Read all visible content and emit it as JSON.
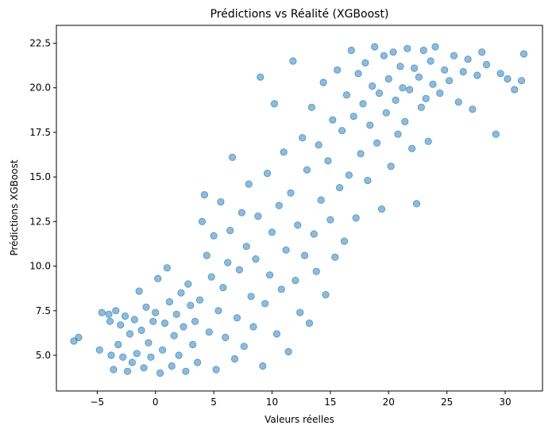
{
  "chart_data": {
    "type": "scatter",
    "title": "Prédictions vs Réalité (XGBoost)",
    "xlabel": "Valeurs réelles",
    "ylabel": "Prédictions XGBoost",
    "xlim": [
      -8.5,
      33.2
    ],
    "ylim": [
      3.0,
      23.5
    ],
    "xticks": [
      -5,
      0,
      5,
      10,
      15,
      20,
      25,
      30
    ],
    "yticks": [
      5.0,
      7.5,
      10.0,
      12.5,
      15.0,
      17.5,
      20.0,
      22.5
    ],
    "xtick_labels": [
      "−5",
      "0",
      "5",
      "10",
      "15",
      "20",
      "25",
      "30"
    ],
    "ytick_labels": [
      "5.0",
      "7.5",
      "10.0",
      "12.5",
      "15.0",
      "17.5",
      "20.0",
      "22.5"
    ],
    "grid": false,
    "marker_color": "#1f77b4",
    "marker_alpha": 0.5,
    "series": [
      {
        "values_note": "",
        "points": [
          [
            -7.0,
            5.8
          ],
          [
            -6.6,
            6.0
          ],
          [
            -4.8,
            5.3
          ],
          [
            -4.6,
            7.4
          ],
          [
            -4.0,
            7.3
          ],
          [
            -3.9,
            6.9
          ],
          [
            -3.8,
            5.0
          ],
          [
            -3.6,
            4.2
          ],
          [
            -3.4,
            7.5
          ],
          [
            -3.2,
            5.6
          ],
          [
            -3.0,
            6.7
          ],
          [
            -2.8,
            4.9
          ],
          [
            -2.6,
            7.2
          ],
          [
            -2.4,
            4.1
          ],
          [
            -2.2,
            6.2
          ],
          [
            -2.0,
            4.6
          ],
          [
            -1.8,
            7.0
          ],
          [
            -1.6,
            5.1
          ],
          [
            -1.4,
            8.6
          ],
          [
            -1.2,
            6.4
          ],
          [
            -1.0,
            4.3
          ],
          [
            -0.8,
            7.7
          ],
          [
            -0.6,
            5.7
          ],
          [
            -0.4,
            4.9
          ],
          [
            -0.2,
            6.9
          ],
          [
            0.0,
            7.4
          ],
          [
            0.2,
            9.3
          ],
          [
            0.4,
            4.0
          ],
          [
            0.6,
            5.3
          ],
          [
            0.8,
            6.8
          ],
          [
            1.0,
            9.9
          ],
          [
            1.2,
            8.0
          ],
          [
            1.4,
            4.4
          ],
          [
            1.6,
            6.1
          ],
          [
            1.8,
            7.3
          ],
          [
            2.0,
            5.0
          ],
          [
            2.2,
            8.5
          ],
          [
            2.4,
            6.6
          ],
          [
            2.6,
            4.1
          ],
          [
            2.8,
            9.0
          ],
          [
            3.0,
            7.8
          ],
          [
            3.2,
            5.6
          ],
          [
            3.4,
            6.9
          ],
          [
            3.6,
            4.6
          ],
          [
            3.8,
            8.1
          ],
          [
            4.0,
            12.5
          ],
          [
            4.2,
            14.0
          ],
          [
            4.4,
            10.6
          ],
          [
            4.6,
            6.3
          ],
          [
            4.8,
            9.4
          ],
          [
            5.0,
            11.7
          ],
          [
            5.2,
            4.2
          ],
          [
            5.4,
            7.5
          ],
          [
            5.6,
            13.6
          ],
          [
            5.8,
            8.8
          ],
          [
            6.0,
            6.0
          ],
          [
            6.2,
            10.2
          ],
          [
            6.4,
            12.0
          ],
          [
            6.6,
            16.1
          ],
          [
            6.8,
            4.8
          ],
          [
            7.0,
            7.1
          ],
          [
            7.2,
            9.8
          ],
          [
            7.4,
            13.0
          ],
          [
            7.6,
            5.5
          ],
          [
            7.8,
            11.1
          ],
          [
            8.0,
            14.6
          ],
          [
            8.2,
            8.3
          ],
          [
            8.4,
            6.6
          ],
          [
            8.6,
            10.4
          ],
          [
            8.8,
            12.8
          ],
          [
            9.0,
            20.6
          ],
          [
            9.2,
            4.4
          ],
          [
            9.4,
            7.9
          ],
          [
            9.6,
            15.2
          ],
          [
            9.8,
            9.5
          ],
          [
            10.0,
            11.9
          ],
          [
            10.2,
            19.1
          ],
          [
            10.4,
            6.2
          ],
          [
            10.6,
            13.4
          ],
          [
            10.8,
            8.7
          ],
          [
            11.0,
            16.4
          ],
          [
            11.2,
            10.9
          ],
          [
            11.4,
            5.2
          ],
          [
            11.6,
            14.1
          ],
          [
            11.8,
            21.5
          ],
          [
            12.0,
            9.2
          ],
          [
            12.2,
            12.3
          ],
          [
            12.4,
            7.4
          ],
          [
            12.6,
            17.2
          ],
          [
            12.8,
            10.6
          ],
          [
            13.0,
            15.4
          ],
          [
            13.2,
            6.8
          ],
          [
            13.4,
            18.9
          ],
          [
            13.6,
            11.8
          ],
          [
            13.8,
            9.7
          ],
          [
            14.0,
            16.8
          ],
          [
            14.2,
            13.7
          ],
          [
            14.4,
            20.3
          ],
          [
            14.6,
            8.4
          ],
          [
            14.8,
            15.9
          ],
          [
            15.0,
            12.6
          ],
          [
            15.2,
            18.2
          ],
          [
            15.4,
            10.5
          ],
          [
            15.6,
            21.0
          ],
          [
            15.8,
            14.4
          ],
          [
            16.0,
            17.6
          ],
          [
            16.2,
            11.4
          ],
          [
            16.4,
            19.6
          ],
          [
            16.6,
            15.1
          ],
          [
            16.8,
            22.1
          ],
          [
            17.0,
            18.4
          ],
          [
            17.2,
            12.7
          ],
          [
            17.4,
            20.8
          ],
          [
            17.6,
            16.3
          ],
          [
            17.8,
            19.1
          ],
          [
            18.0,
            21.4
          ],
          [
            18.2,
            14.8
          ],
          [
            18.4,
            17.9
          ],
          [
            18.6,
            20.1
          ],
          [
            18.8,
            22.3
          ],
          [
            19.0,
            16.9
          ],
          [
            19.2,
            19.7
          ],
          [
            19.4,
            13.2
          ],
          [
            19.6,
            21.8
          ],
          [
            19.8,
            18.6
          ],
          [
            20.0,
            20.5
          ],
          [
            20.2,
            15.6
          ],
          [
            20.4,
            22.0
          ],
          [
            20.6,
            19.3
          ],
          [
            20.8,
            17.4
          ],
          [
            21.0,
            21.2
          ],
          [
            21.2,
            20.0
          ],
          [
            21.4,
            18.1
          ],
          [
            21.6,
            22.2
          ],
          [
            21.8,
            19.9
          ],
          [
            22.0,
            16.6
          ],
          [
            22.2,
            21.1
          ],
          [
            22.4,
            13.5
          ],
          [
            22.6,
            20.6
          ],
          [
            22.8,
            18.9
          ],
          [
            23.0,
            22.1
          ],
          [
            23.2,
            19.4
          ],
          [
            23.4,
            17.0
          ],
          [
            23.6,
            21.5
          ],
          [
            23.8,
            20.2
          ],
          [
            24.0,
            22.3
          ],
          [
            24.4,
            19.7
          ],
          [
            24.8,
            21.0
          ],
          [
            25.2,
            20.4
          ],
          [
            25.6,
            21.8
          ],
          [
            26.0,
            19.2
          ],
          [
            26.4,
            20.9
          ],
          [
            26.8,
            21.6
          ],
          [
            27.2,
            18.8
          ],
          [
            27.6,
            20.7
          ],
          [
            28.0,
            22.0
          ],
          [
            28.4,
            21.3
          ],
          [
            29.2,
            17.4
          ],
          [
            29.6,
            20.8
          ],
          [
            30.2,
            20.5
          ],
          [
            30.8,
            19.9
          ],
          [
            31.6,
            21.9
          ],
          [
            31.4,
            20.4
          ]
        ]
      }
    ]
  }
}
